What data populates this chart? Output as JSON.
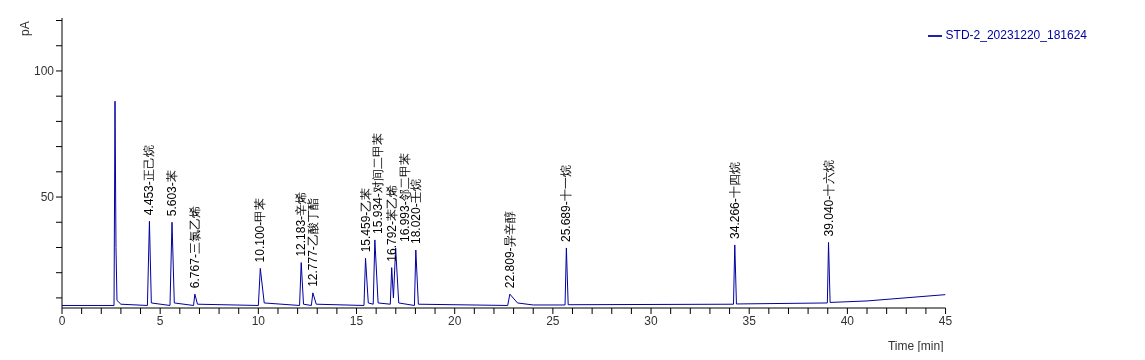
{
  "chart_data": {
    "type": "line",
    "xlabel": "Time [min]",
    "ylabel": "pA",
    "xlim": [
      0,
      45
    ],
    "xticks": [
      0,
      {
        "value": 1,
        "label": null
      },
      {
        "value": 2,
        "label": null
      },
      {
        "value": 3,
        "label": null
      },
      {
        "value": 4,
        "label": null
      },
      5,
      {
        "value": 6,
        "label": null
      },
      {
        "value": 7,
        "label": null
      },
      {
        "value": 8,
        "label": null
      },
      {
        "value": 9,
        "label": null
      },
      10,
      {
        "value": 11,
        "label": null
      },
      {
        "value": 12,
        "label": null
      },
      {
        "value": 13,
        "label": null
      },
      {
        "value": 14,
        "label": null
      },
      15,
      {
        "value": 16,
        "label": null
      },
      {
        "value": 17,
        "label": null
      },
      {
        "value": 18,
        "label": null
      },
      {
        "value": 19,
        "label": null
      },
      20,
      {
        "value": 21,
        "label": null
      },
      {
        "value": 22,
        "label": null
      },
      {
        "value": 23,
        "label": null
      },
      {
        "value": 24,
        "label": null
      },
      25,
      {
        "value": 26,
        "label": null
      },
      {
        "value": 27,
        "label": null
      },
      {
        "value": 28,
        "label": null
      },
      {
        "value": 29,
        "label": null
      },
      30,
      {
        "value": 31,
        "label": null
      },
      {
        "value": 32,
        "label": null
      },
      {
        "value": 33,
        "label": null
      },
      {
        "value": 34,
        "label": null
      },
      35,
      {
        "value": 36,
        "label": null
      },
      {
        "value": 37,
        "label": null
      },
      {
        "value": 38,
        "label": null
      },
      {
        "value": 39,
        "label": null
      },
      40,
      {
        "value": 41,
        "label": null
      },
      {
        "value": 42,
        "label": null
      },
      {
        "value": 43,
        "label": null
      },
      {
        "value": 44,
        "label": null
      },
      45
    ],
    "ylim": [
      6,
      121
    ],
    "yticks": [
      {
        "value": 10,
        "label": null
      },
      {
        "value": 20,
        "label": null
      },
      {
        "value": 30,
        "label": null
      },
      {
        "value": 40,
        "label": null
      },
      50,
      {
        "value": 60,
        "label": null
      },
      {
        "value": 70,
        "label": null
      },
      {
        "value": 80,
        "label": null
      },
      {
        "value": 90,
        "label": null
      },
      100,
      {
        "value": 110,
        "label": null
      },
      {
        "value": 120,
        "label": null
      }
    ],
    "grid": false,
    "legend": "top right",
    "marker": "none",
    "line_style": "solid",
    "series": [
      {
        "name": "STD-2_20231220_181624",
        "color": "#0000a0",
        "x": [
          0,
          2.65,
          2.7,
          2.75,
          2.8,
          3.0,
          4.35,
          4.453,
          4.55,
          5.5,
          5.603,
          5.72,
          6.7,
          6.767,
          6.9,
          10.0,
          10.1,
          10.3,
          12.1,
          12.183,
          12.3,
          12.7,
          12.777,
          12.95,
          15.38,
          15.459,
          15.6,
          15.85,
          15.934,
          16.1,
          16.72,
          16.792,
          16.88,
          16.993,
          17.15,
          17.95,
          18.02,
          18.15,
          22.7,
          22.809,
          23.2,
          24,
          25.62,
          25.689,
          25.78,
          34.2,
          34.266,
          34.35,
          38.98,
          39.04,
          39.12,
          41,
          45
        ],
        "values": [
          7,
          7,
          88,
          30,
          9,
          7.5,
          7,
          40.4,
          8,
          7,
          40,
          8,
          7,
          11.5,
          7.5,
          7,
          21.7,
          8,
          7,
          24,
          7.5,
          7,
          12,
          7.5,
          7,
          25.7,
          8,
          7.5,
          33,
          8,
          7.5,
          22,
          10,
          29.8,
          8,
          7,
          29,
          7.5,
          7,
          11.5,
          8,
          7.2,
          7.2,
          29.8,
          7.3,
          7.5,
          31,
          7.6,
          8,
          32,
          8.2,
          8.8,
          11.3
        ]
      }
    ],
    "annotations": [
      {
        "text": "4.453-正己烷",
        "x": 4.453,
        "y": 40.4
      },
      {
        "text": "5.603-苯",
        "x": 5.603,
        "y": 40
      },
      {
        "text": "6.767-三氯乙烯",
        "x": 6.767,
        "y": 11.5
      },
      {
        "text": "10.100-甲苯",
        "x": 10.1,
        "y": 21.7
      },
      {
        "text": "12.183-辛烯",
        "x": 12.183,
        "y": 24
      },
      {
        "text": "12.777-乙酸丁酯",
        "x": 12.777,
        "y": 12
      },
      {
        "text": "15.459-乙苯",
        "x": 15.459,
        "y": 25.7
      },
      {
        "text": "15.934-对间二甲苯",
        "x": 15.934,
        "y": 33
      },
      {
        "text": "16.792-苯乙烯",
        "x": 16.792,
        "y": 22
      },
      {
        "text": "16.993-邻二甲苯",
        "x": 16.993,
        "y": 29.8
      },
      {
        "text": "18.020-壬烷",
        "x": 18.02,
        "y": 29
      },
      {
        "text": "22.809-异辛醇",
        "x": 22.809,
        "y": 11.5
      },
      {
        "text": "25.689-十一烷",
        "x": 25.689,
        "y": 29.8
      },
      {
        "text": "34.266-十四烷",
        "x": 34.266,
        "y": 31
      },
      {
        "text": "39.040-十六烷",
        "x": 39.04,
        "y": 32
      }
    ]
  }
}
